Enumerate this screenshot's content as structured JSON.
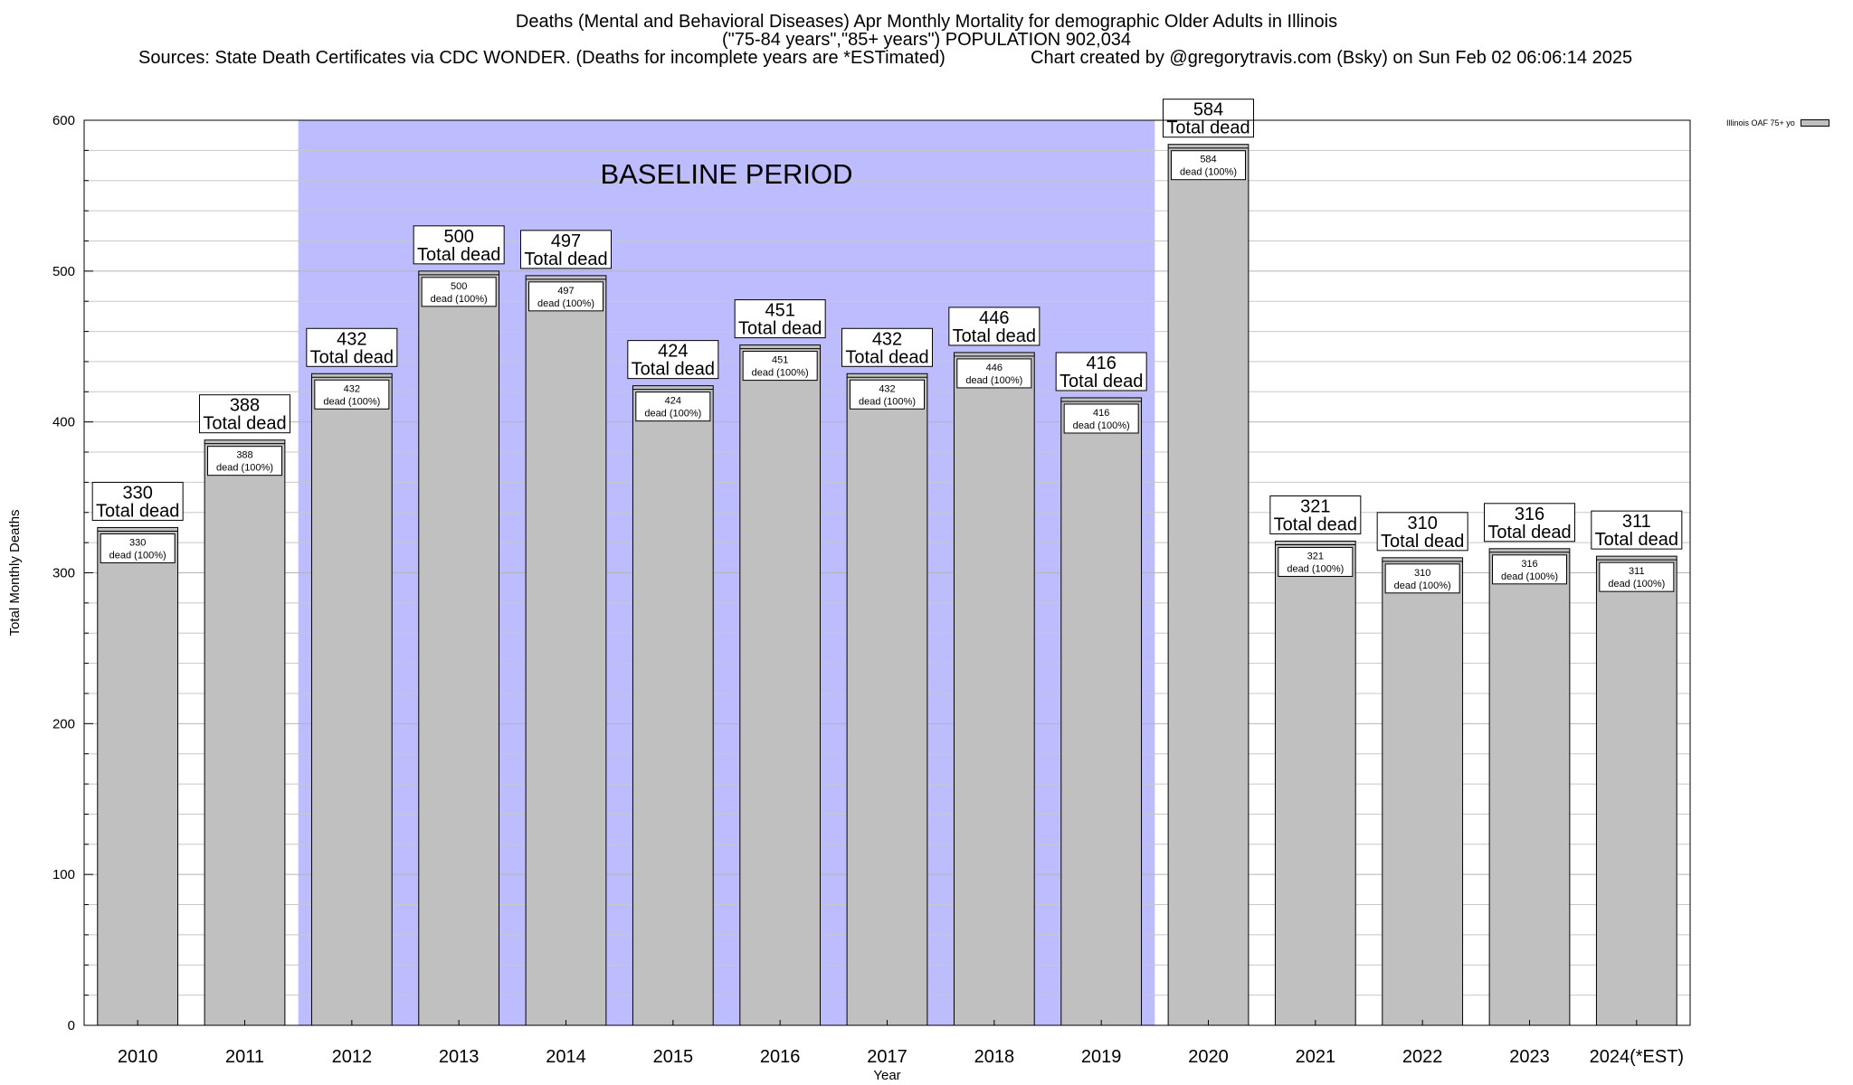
{
  "title": {
    "line1": "Deaths (Mental and Behavioral Diseases) Apr Monthly Mortality for demographic Older Adults in Illinois",
    "line2": "(\"75-84 years\",\"85+ years\") POPULATION 902,034",
    "sources": "Sources: State Death Certificates via CDC WONDER. (Deaths for incomplete years are *ESTimated)",
    "credit": "Chart created by @gregorytravis.com (Bsky) on Sun Feb 02 06:06:14 2025"
  },
  "legend": {
    "label": "Illinois OAF 75+ yo",
    "color": "#c0c0c0"
  },
  "colors": {
    "bar": "#c0c0c0",
    "baseline_band": "#bcbcff",
    "grid": "#c8c8c8"
  },
  "chart_data": {
    "type": "bar",
    "xlabel": "Year",
    "ylabel": "Total Monthly Deaths",
    "ylim": [
      0,
      600
    ],
    "yticks": [
      0,
      100,
      200,
      300,
      400,
      500,
      600
    ],
    "grid": true,
    "legend_position": "top-right",
    "categories": [
      "2010",
      "2011",
      "2012",
      "2013",
      "2014",
      "2015",
      "2016",
      "2017",
      "2018",
      "2019",
      "2020",
      "2021",
      "2022",
      "2023",
      "2024(*EST)"
    ],
    "series": [
      {
        "name": "Illinois OAF 75+ yo",
        "values": [
          330,
          388,
          432,
          500,
          497,
          424,
          451,
          432,
          446,
          416,
          584,
          321,
          310,
          316,
          311
        ]
      }
    ],
    "total_label": "Total dead",
    "inner_label": "dead (100%)",
    "baseline": {
      "label": "BASELINE PERIOD",
      "from": "2012",
      "to": "2019"
    }
  }
}
